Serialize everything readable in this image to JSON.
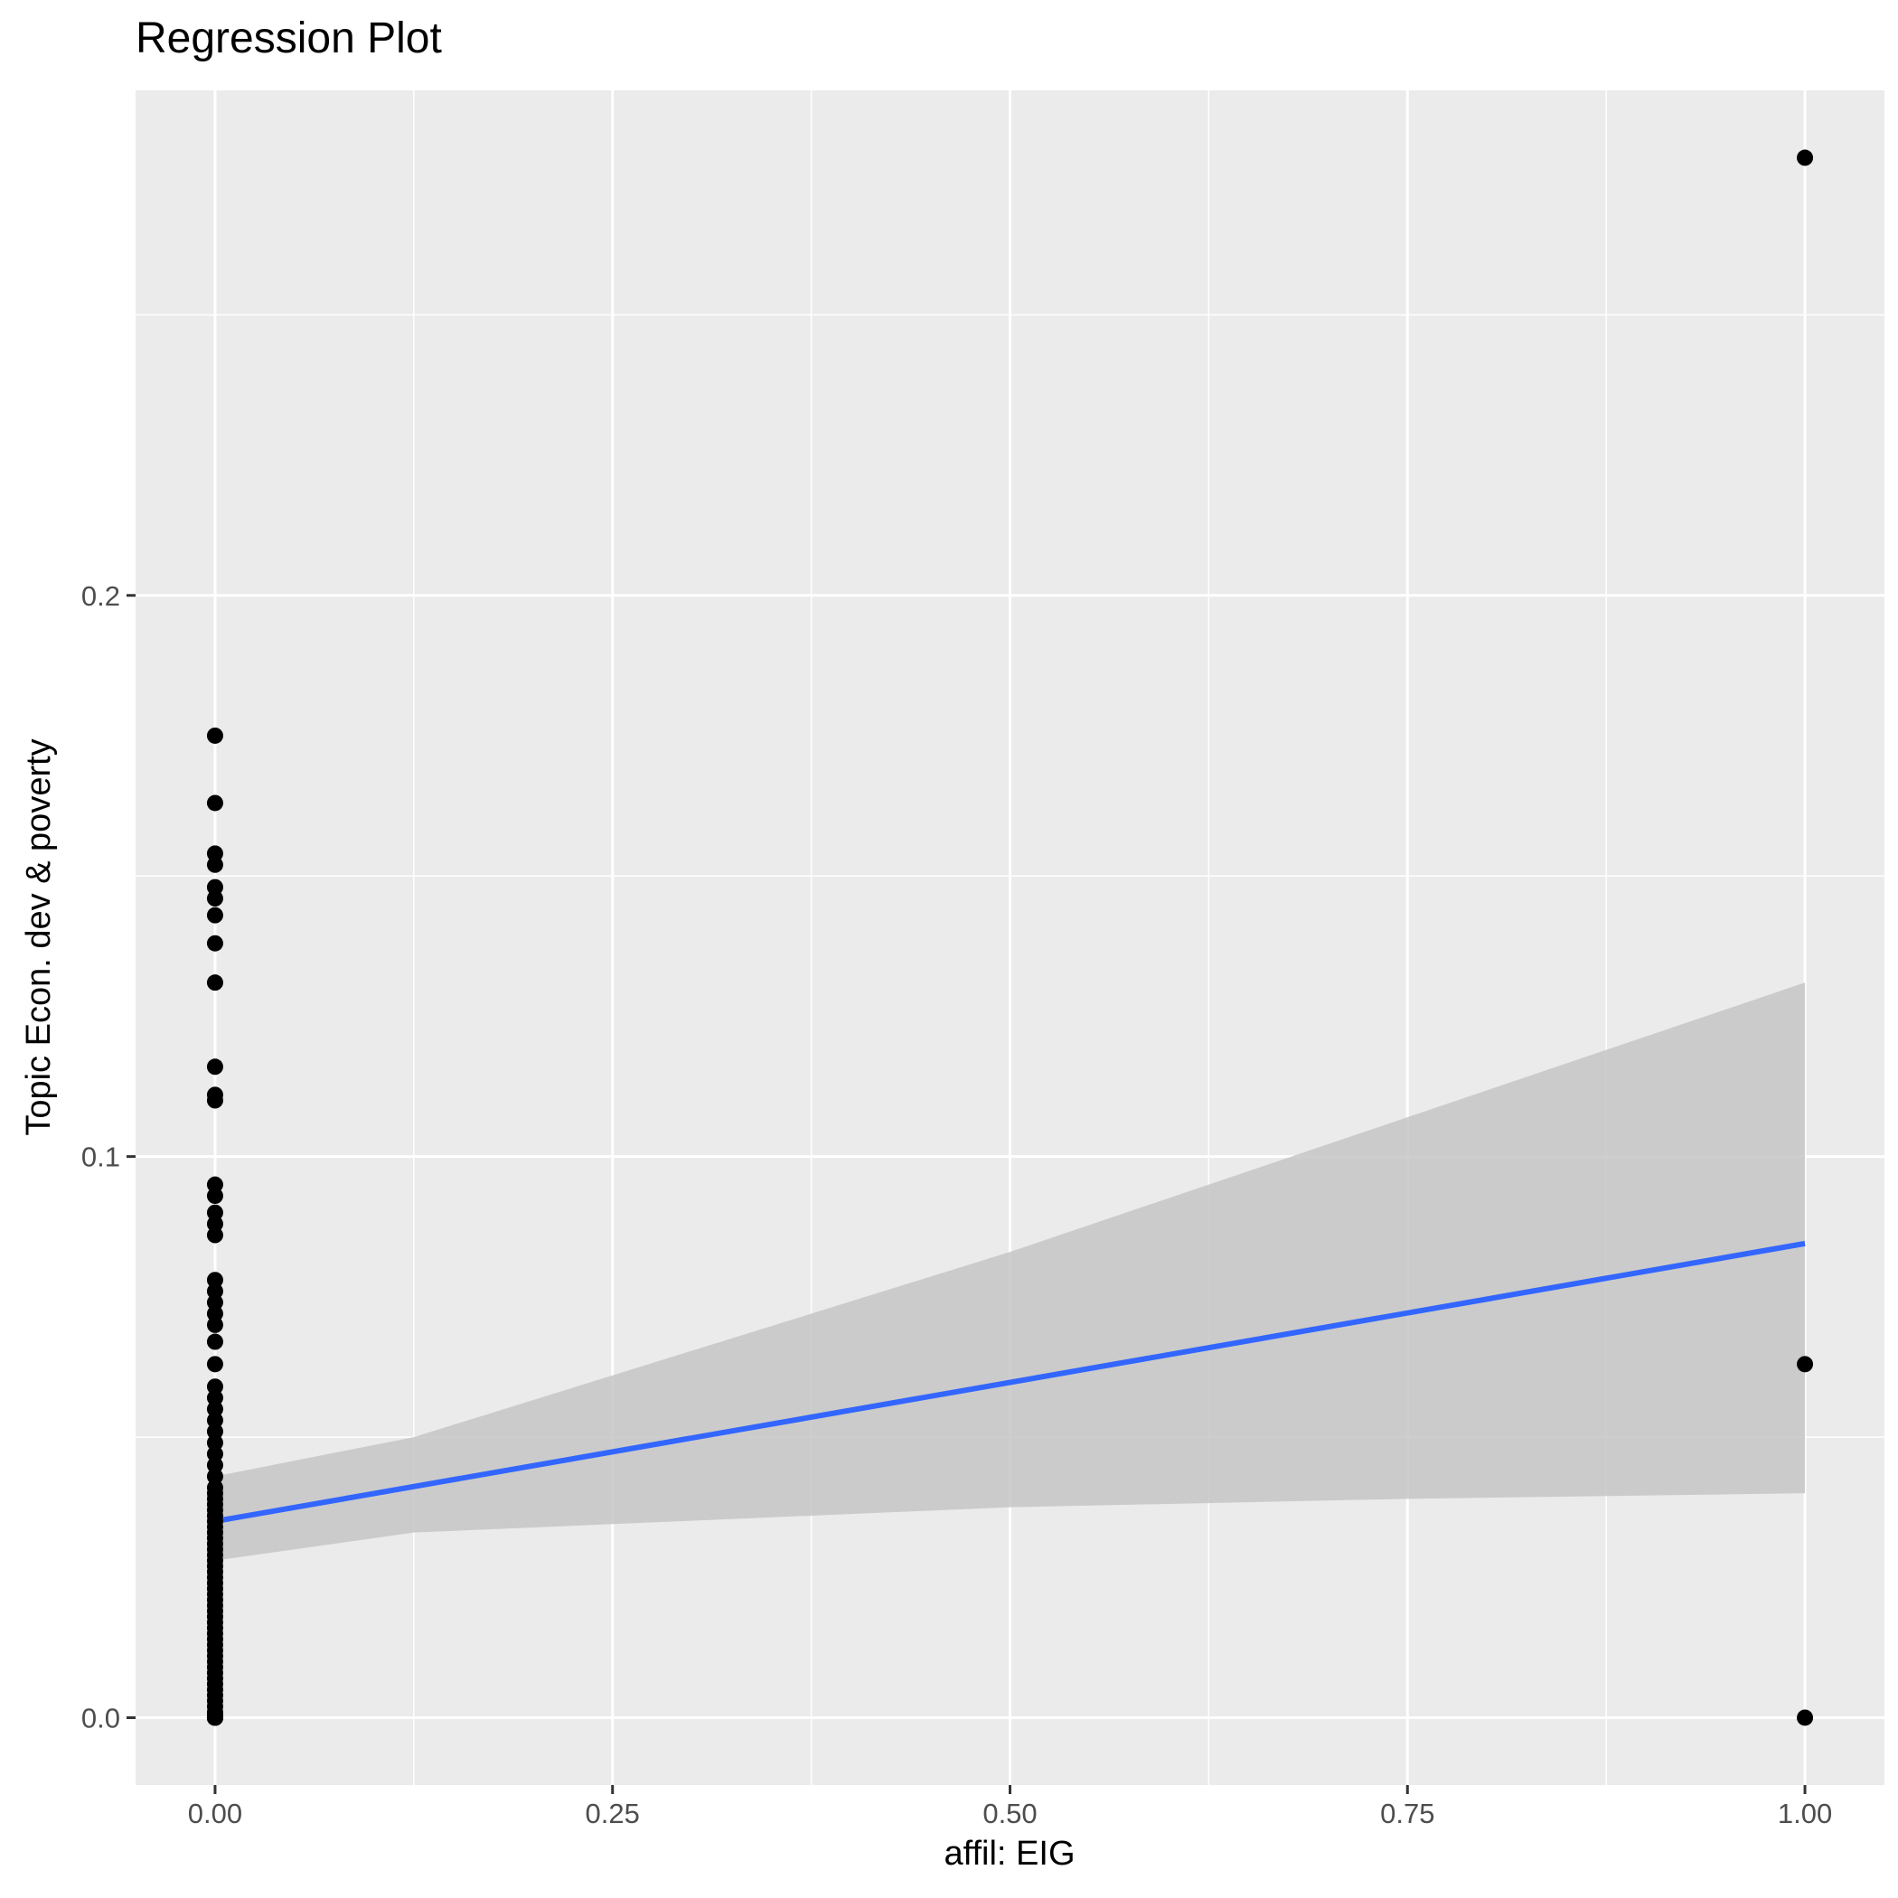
{
  "chart_data": {
    "type": "scatter",
    "title": "Regression Plot",
    "xlabel": "affil: EIG",
    "ylabel": "Topic Econ. dev & poverty",
    "xlim": [
      -0.05,
      1.05
    ],
    "ylim": [
      -0.012,
      0.29
    ],
    "x_ticks": [
      0,
      0.25,
      0.5,
      0.75,
      1
    ],
    "x_tick_labels": [
      "0.00",
      "0.25",
      "0.50",
      "0.75",
      "1.00"
    ],
    "y_ticks": [
      0,
      0.1,
      0.2
    ],
    "y_tick_labels": [
      "0.0",
      "0.1",
      "0.2"
    ],
    "grid": true,
    "colors": {
      "panel": "#ebebeb",
      "grid": "#ffffff",
      "points": "#000000",
      "fit_line": "#3366ff",
      "confidence_band": "#c6c6c6"
    },
    "points": {
      "x": [
        0,
        0,
        0,
        0,
        0,
        0,
        0,
        0,
        0,
        0,
        0,
        0,
        0,
        0,
        0,
        0,
        0,
        0,
        0,
        0,
        0,
        0,
        0,
        0,
        0,
        0,
        0,
        0,
        0,
        0,
        0,
        0,
        0,
        0,
        0,
        0,
        0,
        0,
        0,
        0,
        0,
        0,
        0,
        0,
        0,
        0,
        0,
        0,
        0,
        0,
        0,
        0,
        0,
        0,
        0,
        0,
        0,
        0,
        0,
        0,
        0,
        0,
        0,
        0,
        0,
        0,
        0,
        0,
        0,
        0,
        0,
        0,
        0,
        0,
        0,
        0,
        0,
        0,
        0,
        0,
        0,
        0,
        0,
        0,
        0,
        1,
        1,
        1
      ],
      "y": [
        0.175,
        0.163,
        0.154,
        0.152,
        0.148,
        0.146,
        0.143,
        0.138,
        0.131,
        0.116,
        0.111,
        0.11,
        0.095,
        0.093,
        0.09,
        0.088,
        0.086,
        0.078,
        0.076,
        0.074,
        0.072,
        0.07,
        0.067,
        0.063,
        0.059,
        0.057,
        0.055,
        0.053,
        0.051,
        0.049,
        0.047,
        0.045,
        0.043,
        0.041,
        0.04,
        0.039,
        0.038,
        0.037,
        0.036,
        0.035,
        0.034,
        0.033,
        0.032,
        0.031,
        0.03,
        0.029,
        0.028,
        0.027,
        0.026,
        0.025,
        0.024,
        0.023,
        0.022,
        0.021,
        0.02,
        0.019,
        0.018,
        0.017,
        0.016,
        0.015,
        0.014,
        0.013,
        0.012,
        0.011,
        0.01,
        0.009,
        0.008,
        0.007,
        0.006,
        0.005,
        0.004,
        0.003,
        0.002,
        0.001,
        0.0005,
        0,
        0,
        0,
        0,
        0,
        0,
        0,
        0,
        0,
        0,
        0.278,
        0.063,
        0.0
      ]
    },
    "regression": {
      "intercept": 0.035,
      "slope": 0.0495,
      "ci_lower": [
        [
          0,
          0.028
        ],
        [
          0.125,
          0.033
        ],
        [
          0.25,
          0.0345
        ],
        [
          0.5,
          0.0375
        ],
        [
          0.75,
          0.039
        ],
        [
          1,
          0.04
        ]
      ],
      "ci_upper": [
        [
          0,
          0.043
        ],
        [
          0.125,
          0.05
        ],
        [
          0.25,
          0.061
        ],
        [
          0.5,
          0.083
        ],
        [
          0.75,
          0.107
        ],
        [
          1,
          0.131
        ]
      ]
    }
  }
}
